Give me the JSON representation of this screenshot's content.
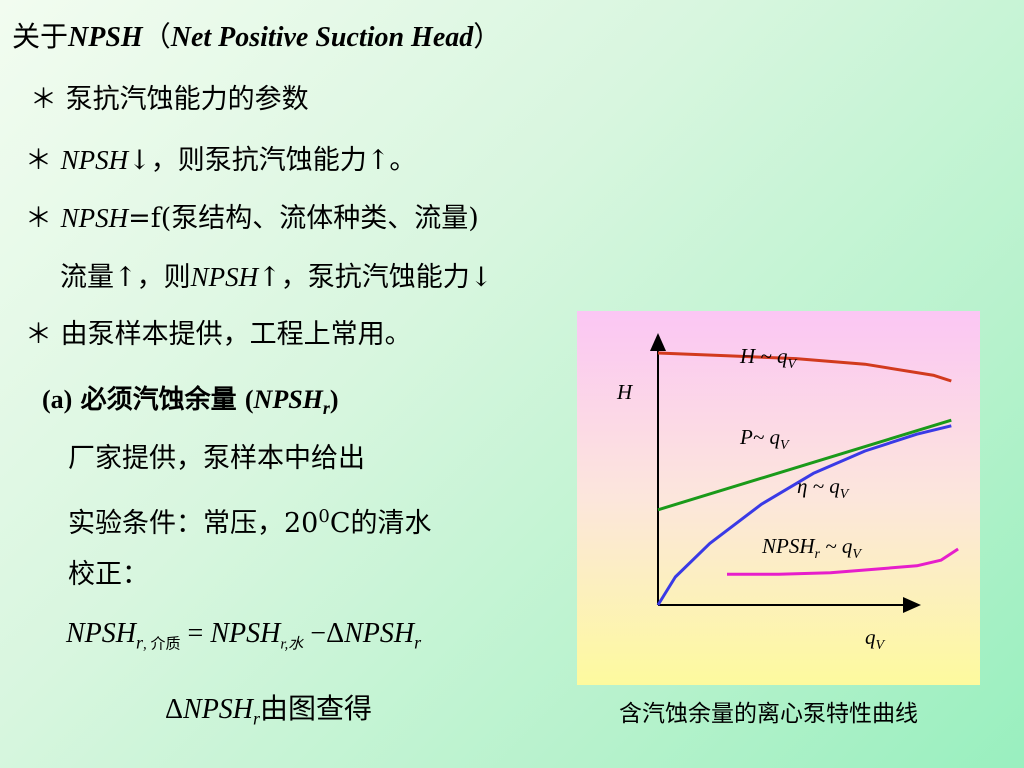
{
  "title": {
    "prefix": "关于",
    "abbr": "NPSH",
    "paren_open": "（",
    "full": "Net Positive Suction Head",
    "paren_close": "）"
  },
  "bullets": {
    "b1": "＊ 泵抗汽蚀能力的参数",
    "b2": {
      "star": "＊",
      "term": "NPSH",
      "rest": "↓，则泵抗汽蚀能力↑。"
    },
    "b3": {
      "star": "＊",
      "term": "NPSH",
      "rest": "=f(泵结构、流体种类、流量)"
    },
    "b3_sub": {
      "pre": "流量↑，则",
      "term": "NPSH",
      "post": "↑，泵抗汽蚀能力↓"
    },
    "b4": "＊ 由泵样本提供，工程上常用。"
  },
  "section_a": {
    "label": "(a)",
    "title": "必须汽蚀余量",
    "paren_open": "(",
    "term": "NPSH",
    "sub": "r",
    "paren_close": ")",
    "line1": "厂家提供，泵样本中给出",
    "line2_pre": "实验条件：常压，20",
    "line2_sup": "0",
    "line2_post": "C的清水",
    "line3": "校正："
  },
  "formula": {
    "lhs": "NPSH",
    "lhs_sub": "r",
    "lhs_sub2": ", 介质",
    "eq": "=",
    "t1": "NPSH",
    "t1_sub": "r,水",
    "minus": "−",
    "delta": "Δ",
    "t2": "NPSH",
    "t2_sub": "r"
  },
  "delta_line": {
    "delta": "Δ",
    "term": "NPSH",
    "sub": "r",
    "text": "由图查得"
  },
  "chart_data": {
    "type": "line",
    "title": "",
    "ylabel": "H",
    "xlabel": "q",
    "xlabel_sub": "V",
    "grid": false,
    "xlim": [
      0,
      1
    ],
    "ylim": [
      0,
      1
    ],
    "series": [
      {
        "name": "H ~ q",
        "name_sub": "V",
        "color": "#d23a1e",
        "x": [
          0,
          0.2,
          0.4,
          0.6,
          0.8,
          0.85
        ],
        "y": [
          0.9,
          0.89,
          0.88,
          0.86,
          0.82,
          0.8
        ]
      },
      {
        "name": "P~ q",
        "name_sub": "V",
        "color": "#1a9a1a",
        "x": [
          0,
          0.85
        ],
        "y": [
          0.34,
          0.66
        ]
      },
      {
        "name": "η ~ q",
        "name_sub": "V",
        "color": "#3a3ae6",
        "x": [
          0,
          0.05,
          0.15,
          0.3,
          0.45,
          0.6,
          0.75,
          0.85
        ],
        "y": [
          0.0,
          0.1,
          0.22,
          0.36,
          0.47,
          0.55,
          0.61,
          0.64
        ]
      },
      {
        "name": "NPSH",
        "name_sub": "r",
        "name_suffix": " ~ q",
        "name_suffix_sub": "V",
        "color": "#e61ecb",
        "x": [
          0.2,
          0.35,
          0.5,
          0.65,
          0.75,
          0.82,
          0.87
        ],
        "y": [
          0.11,
          0.11,
          0.115,
          0.13,
          0.14,
          0.16,
          0.2
        ]
      }
    ]
  },
  "caption": "含汽蚀余量的离心泵特性曲线"
}
